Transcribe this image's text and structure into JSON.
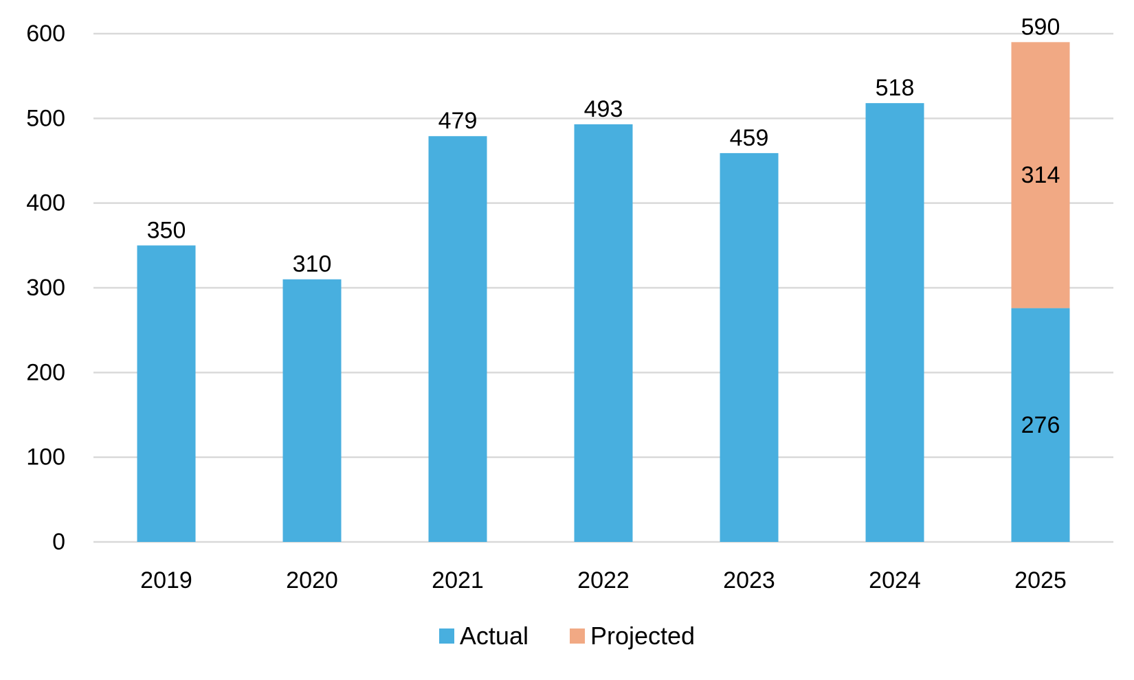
{
  "chart_data": {
    "type": "bar",
    "stacked": true,
    "categories": [
      "2019",
      "2020",
      "2021",
      "2022",
      "2023",
      "2024",
      "2025"
    ],
    "series": [
      {
        "name": "Actual",
        "color": "#48AFDF",
        "values": [
          350,
          310,
          479,
          493,
          459,
          518,
          276
        ],
        "labels": [
          "350",
          "310",
          "479",
          "493",
          "459",
          "518",
          "276"
        ]
      },
      {
        "name": "Projected",
        "color": "#F1A984",
        "values": [
          null,
          null,
          null,
          null,
          null,
          null,
          314
        ],
        "labels": [
          "",
          "",
          "",
          "",
          "",
          "",
          "314"
        ]
      }
    ],
    "total_labels": [
      "",
      "",
      "",
      "",
      "",
      "",
      "590"
    ],
    "y_ticks": [
      "0",
      "100",
      "200",
      "300",
      "400",
      "500",
      "600"
    ],
    "ylim": [
      0,
      600
    ],
    "grid": true,
    "gridline_color": "#D9D9D9",
    "legend_position": "bottom",
    "title": "",
    "xlabel": "",
    "ylabel": ""
  }
}
